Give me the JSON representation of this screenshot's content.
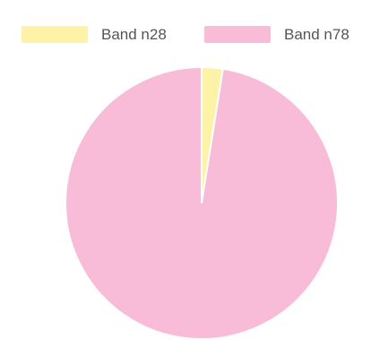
{
  "chart_data": {
    "type": "pie",
    "categories": [
      "Band n28",
      "Band n78"
    ],
    "values": [
      2.5,
      97.5
    ],
    "colors": [
      "#fdf2a8",
      "#f9bcd8"
    ],
    "legend_position": "top",
    "start_angle": "12 o'clock",
    "direction": "clockwise"
  }
}
